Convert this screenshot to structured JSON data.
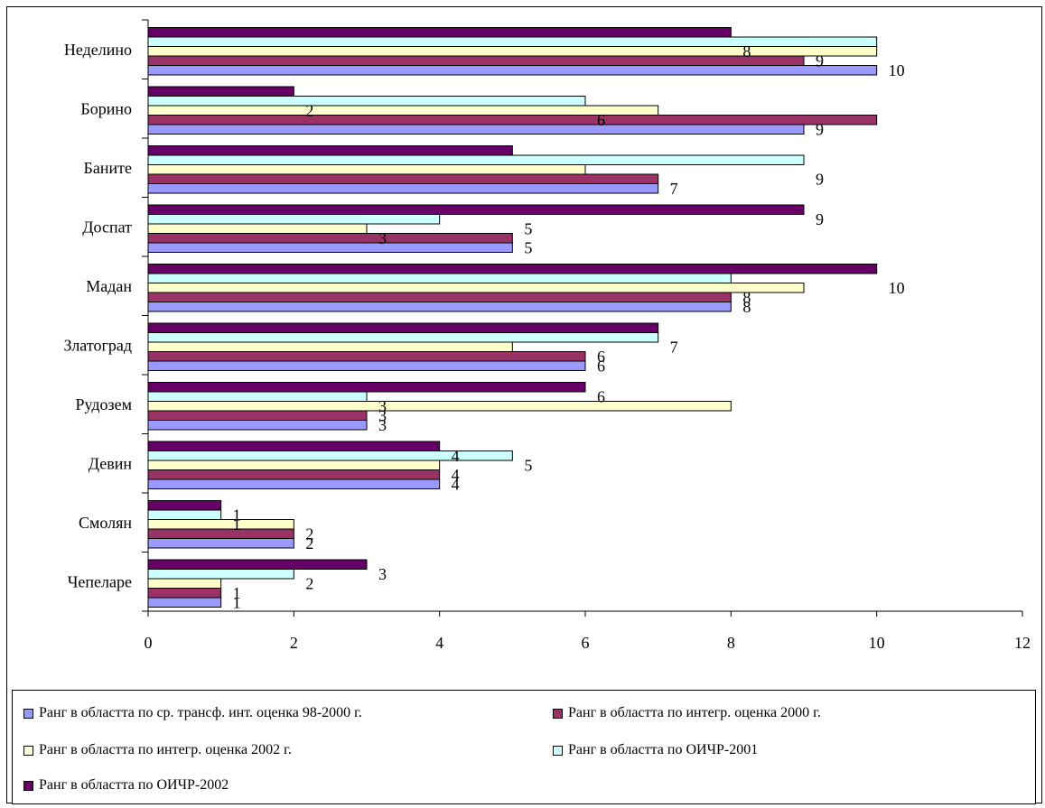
{
  "chart_data": {
    "type": "bar",
    "orientation": "horizontal",
    "categories": [
      "Неделино",
      "Борино",
      "Баните",
      "Доспат",
      "Мадан",
      "Златоград",
      "Рудозем",
      "Девин",
      "Смолян",
      "Чепеларе"
    ],
    "series": [
      {
        "name": "Ранг в областта по ср. трансф. инт. оценка 98-2000 г.",
        "color": "#9999ff",
        "values": [
          10,
          9,
          7,
          5,
          8,
          6,
          3,
          4,
          2,
          1
        ]
      },
      {
        "name": "Ранг в областта по интегр. оценка 2000 г.",
        "color": "#993366",
        "values": [
          9,
          10,
          7,
          5,
          8,
          6,
          3,
          4,
          2,
          1
        ]
      },
      {
        "name": "Ранг в областта по интегр. оценка 2002 г.",
        "color": "#ffffcc",
        "values": [
          10,
          7,
          6,
          3,
          9,
          5,
          8,
          4,
          2,
          1
        ]
      },
      {
        "name": "Ранг в областта по ОИЧР-2001",
        "color": "#ccffff",
        "values": [
          10,
          6,
          9,
          4,
          8,
          7,
          3,
          5,
          1,
          2
        ]
      },
      {
        "name": "Ранг в областта по ОИЧР-2002",
        "color": "#660066",
        "values": [
          8,
          2,
          5,
          9,
          10,
          7,
          6,
          4,
          1,
          3
        ]
      }
    ],
    "labels": [
      {
        "category": "Неделино",
        "texts": [
          "10",
          "9",
          "8"
        ]
      },
      {
        "category": "Борино",
        "texts": [
          "9",
          "6",
          "2"
        ]
      },
      {
        "category": "Баните",
        "texts": [
          "7",
          "9"
        ]
      },
      {
        "category": "Доспат",
        "texts": [
          "5",
          "3",
          "5",
          "9"
        ]
      },
      {
        "category": "Мадан",
        "texts": [
          "8",
          "8",
          "10"
        ]
      },
      {
        "category": "Златоград",
        "texts": [
          "6",
          "6",
          "7"
        ]
      },
      {
        "category": "Рудозем",
        "texts": [
          "3",
          "3",
          "3",
          "6"
        ]
      },
      {
        "category": "Девин",
        "texts": [
          "4",
          "4",
          "5",
          "4"
        ]
      },
      {
        "category": "Смолян",
        "texts": [
          "2",
          "2",
          "1",
          "1"
        ]
      },
      {
        "category": "Чепеларе",
        "texts": [
          "1",
          "1",
          "2",
          "3"
        ]
      }
    ],
    "xlim": [
      0,
      12
    ],
    "xticks": [
      "0",
      "2",
      "4",
      "6",
      "8",
      "10",
      "12"
    ],
    "grid": false,
    "legend_position": "bottom"
  }
}
